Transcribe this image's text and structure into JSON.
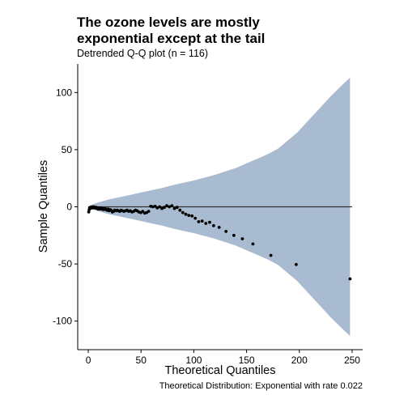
{
  "chart_data": {
    "type": "scatter",
    "title_lines": [
      "The ozone levels are mostly",
      "exponential except at the tail"
    ],
    "subtitle": "Detrended Q-Q plot (n = 116)",
    "xlabel": "Theoretical Quantiles",
    "ylabel": "Sample Quantiles",
    "caption": "Theoretical Distribution: Exponential with rate 0.022",
    "xlim": [
      -10,
      260
    ],
    "ylim": [
      -125,
      125
    ],
    "x_ticks": [
      0,
      50,
      100,
      150,
      200,
      250
    ],
    "y_ticks": [
      -100,
      -50,
      0,
      50,
      100
    ],
    "grid": false,
    "legend": "none",
    "colors": {
      "band": "#a9bbd0",
      "reference_line": "#333333",
      "points": "#000000"
    },
    "reference_line": {
      "y": 0,
      "x": [
        0,
        250
      ]
    },
    "confidence_band": {
      "x": [
        0,
        5,
        10,
        20,
        30,
        40,
        50,
        60,
        70,
        80,
        90,
        100,
        110,
        120,
        130,
        140,
        150,
        160,
        170,
        180,
        198,
        210,
        220,
        230,
        240,
        248
      ],
      "upper": [
        0.5,
        2.5,
        4,
        6.5,
        8.5,
        10.5,
        12.5,
        14.5,
        16.5,
        19,
        21,
        23,
        25.5,
        28,
        31,
        34,
        38,
        42,
        46,
        51,
        65,
        77,
        87,
        97,
        106,
        113
      ],
      "lower": [
        -0.5,
        -2.5,
        -4,
        -6.5,
        -8.5,
        -10.5,
        -12.5,
        -14.5,
        -16.5,
        -19,
        -21,
        -23,
        -25.5,
        -28,
        -31,
        -34,
        -38,
        -42,
        -46,
        -51,
        -65,
        -77,
        -87,
        -97,
        -106,
        -113
      ]
    },
    "points": {
      "x": [
        0.4,
        0.9,
        1.3,
        1.8,
        2.3,
        2.8,
        3.3,
        3.8,
        4.3,
        4.8,
        5.3,
        5.8,
        6.4,
        7.0,
        7.6,
        8.2,
        8.8,
        9.4,
        10.0,
        10.7,
        11.4,
        12.1,
        12.8,
        13.6,
        14.4,
        15.2,
        16.0,
        16.9,
        17.8,
        18.7,
        19.7,
        20.7,
        21.7,
        22.8,
        23.9,
        25.0,
        26.2,
        27.4,
        28.6,
        29.9,
        31.2,
        32.5,
        33.9,
        35.3,
        36.8,
        38.3,
        39.8,
        41.4,
        43.0,
        44.6,
        46.3,
        48.0,
        49.8,
        51.6,
        53.4,
        55.3,
        57.2,
        59.2,
        61.2,
        63.3,
        65.4,
        67.6,
        69.8,
        72.1,
        74.4,
        76.8,
        79.2,
        81.7,
        84.2,
        86.9,
        89.6,
        92.4,
        95.3,
        98.3,
        101.4,
        104.6,
        107.9,
        111.4,
        115.0,
        118.8,
        124.0,
        130.5,
        138.0,
        146.0,
        156.0,
        173.0,
        197.0,
        248.0
      ],
      "y": [
        -4.5,
        -2.5,
        -1.0,
        -1.5,
        -0.5,
        -1.0,
        -0.5,
        0.0,
        -1.0,
        -0.5,
        0.0,
        -1.0,
        -0.5,
        -1.0,
        -0.5,
        -1.5,
        -1.0,
        -2.0,
        -1.0,
        -2.0,
        -1.5,
        -1.0,
        -2.0,
        -1.5,
        -2.5,
        -2.0,
        -1.5,
        -2.5,
        -3.0,
        -2.0,
        -3.5,
        -2.5,
        -3.0,
        -4.5,
        -4.0,
        -3.0,
        -3.5,
        -3.0,
        -3.5,
        -4.0,
        -3.0,
        -3.5,
        -4.0,
        -3.5,
        -3.0,
        -4.0,
        -3.5,
        -4.5,
        -4.0,
        -3.0,
        -3.5,
        -4.5,
        -5.0,
        -4.0,
        -5.5,
        -5.0,
        -4.0,
        0.5,
        0.0,
        0.5,
        -1.0,
        0.0,
        -1.5,
        -0.5,
        1.0,
        0.0,
        1.0,
        -1.5,
        -0.5,
        -3.0,
        -5.0,
        -6.5,
        -7.5,
        -8.0,
        -10.0,
        -13.0,
        -12.5,
        -14.5,
        -13.5,
        -16.5,
        -18.0,
        -21.5,
        -25.0,
        -28.0,
        -32.5,
        -42.5,
        -50.5,
        -63.0
      ]
    }
  }
}
